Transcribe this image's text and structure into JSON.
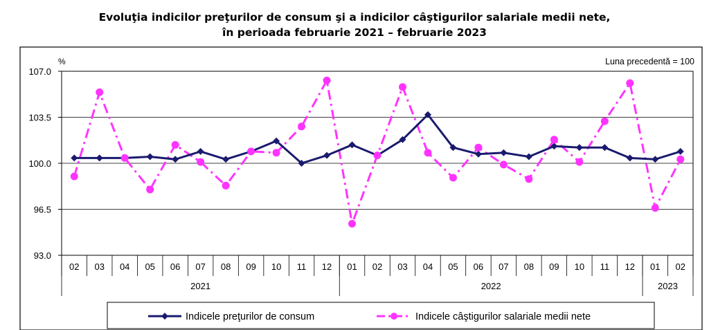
{
  "title": {
    "line1": "Evoluţia indicilor preţurilor de consum şi a indicilor câştigurilor salariale medii nete,",
    "line2": "în perioada februarie 2021 – februarie 2023"
  },
  "chart_data": {
    "type": "line",
    "y_unit_label": "%",
    "annotation": "Luna precedentă = 100",
    "ylim": [
      93.0,
      107.0
    ],
    "yticks": [
      "107.0",
      "103.5",
      "100.0",
      "96.5",
      "93.0"
    ],
    "ytick_values": [
      107.0,
      103.5,
      100.0,
      96.5,
      93.0
    ],
    "categories": [
      "02",
      "03",
      "04",
      "05",
      "06",
      "07",
      "08",
      "09",
      "10",
      "11",
      "12",
      "01",
      "02",
      "03",
      "04",
      "05",
      "06",
      "07",
      "08",
      "09",
      "10",
      "11",
      "12",
      "01",
      "02"
    ],
    "year_groups": [
      {
        "label": "2021",
        "count": 11
      },
      {
        "label": "2022",
        "count": 12
      },
      {
        "label": "2023",
        "count": 2
      }
    ],
    "grid": true,
    "legend_position": "bottom",
    "series": [
      {
        "name": "Indicele preţurilor de consum",
        "color": "#1a1a6e",
        "marker": "diamond",
        "values": [
          100.4,
          100.4,
          100.4,
          100.5,
          100.3,
          100.9,
          100.3,
          100.9,
          101.7,
          100.0,
          100.6,
          101.4,
          100.6,
          101.8,
          103.7,
          101.2,
          100.7,
          100.8,
          100.5,
          101.3,
          101.2,
          101.2,
          100.4,
          100.3,
          100.9
        ]
      },
      {
        "name": "Indicele câştigurilor salariale medii nete",
        "color": "#ff33ff",
        "marker": "circle",
        "values": [
          99.0,
          105.4,
          100.4,
          98.0,
          101.4,
          100.1,
          98.3,
          100.9,
          100.8,
          102.8,
          106.3,
          95.4,
          100.6,
          105.8,
          100.8,
          98.9,
          101.2,
          99.9,
          98.8,
          101.8,
          100.1,
          103.2,
          106.1,
          96.6,
          100.3
        ]
      }
    ]
  }
}
